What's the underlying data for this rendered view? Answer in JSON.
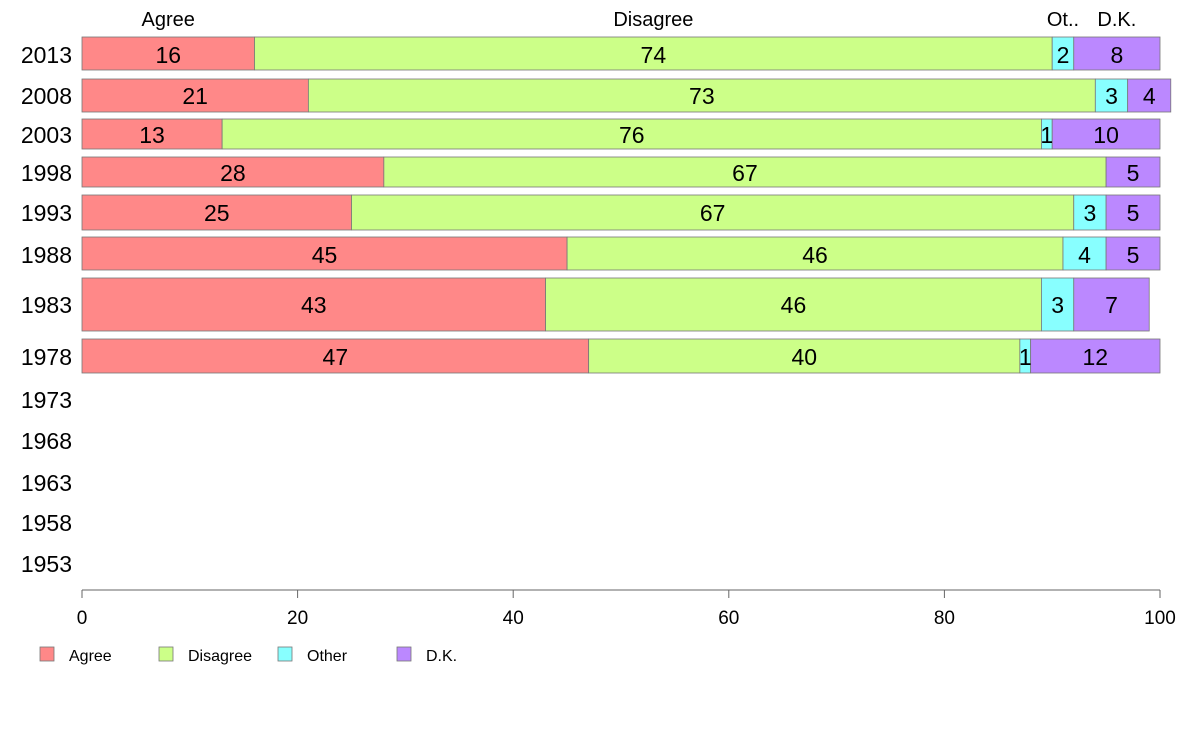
{
  "chart_data": {
    "type": "bar",
    "orientation": "horizontal",
    "stacked": true,
    "categories": [
      "2013",
      "2008",
      "2003",
      "1998",
      "1993",
      "1988",
      "1983",
      "1978",
      "1973",
      "1968",
      "1963",
      "1958",
      "1953"
    ],
    "series": [
      {
        "name": "Agree",
        "header": "Agree",
        "color": "#ff8888",
        "values": [
          16,
          21,
          13,
          28,
          25,
          45,
          43,
          47,
          null,
          null,
          null,
          null,
          null
        ]
      },
      {
        "name": "Disagree",
        "header": "Disagree",
        "color": "#ccff88",
        "values": [
          74,
          73,
          76,
          67,
          67,
          46,
          46,
          40,
          null,
          null,
          null,
          null,
          null
        ]
      },
      {
        "name": "Other",
        "header": "Ot..",
        "color": "#88ffff",
        "values": [
          2,
          3,
          1,
          0,
          3,
          4,
          3,
          1,
          null,
          null,
          null,
          null,
          null
        ]
      },
      {
        "name": "D.K.",
        "header": "D.K.",
        "color": "#bb88ff",
        "values": [
          8,
          4,
          10,
          5,
          5,
          5,
          7,
          12,
          null,
          null,
          null,
          null,
          null
        ]
      }
    ],
    "data_labels": [
      [
        "16",
        "74",
        "2",
        "8"
      ],
      [
        "21",
        "73",
        "3",
        "4"
      ],
      [
        "13",
        "76",
        "1",
        "10"
      ],
      [
        "28",
        "67",
        "",
        "5"
      ],
      [
        "25",
        "67",
        "3",
        "5"
      ],
      [
        "45",
        "46",
        "4",
        "5"
      ],
      [
        "43",
        "46",
        "3",
        "7"
      ],
      [
        "47",
        "40",
        "1",
        "12"
      ]
    ],
    "xlim": [
      0,
      100
    ],
    "xticks": [
      "0",
      "20",
      "40",
      "60",
      "80",
      "100"
    ],
    "grid": false,
    "legend_position": "bottom-left"
  }
}
